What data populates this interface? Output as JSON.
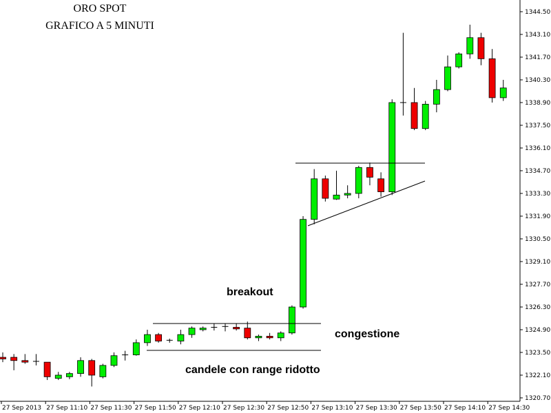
{
  "chart_data": {
    "type": "candlestick",
    "title": "ORO SPOT",
    "subtitle": "GRAFICO A 5 MINUTI",
    "y_ticks": [
      "1344.50",
      "1343.10",
      "1341.70",
      "1340.30",
      "1338.90",
      "1337.50",
      "1336.10",
      "1334.70",
      "1333.30",
      "1331.90",
      "1330.50",
      "1329.10",
      "1327.70",
      "1326.30",
      "1324.90",
      "1323.50",
      "1322.10",
      "1320.70"
    ],
    "ylim": [
      1320.7,
      1344.5
    ],
    "x_ticks": [
      "27 Sep 2013",
      "27 Sep 11:10",
      "27 Sep 11:30",
      "27 Sep 11:50",
      "27 Sep 12:10",
      "27 Sep 12:30",
      "27 Sep 12:50",
      "27 Sep 13:10",
      "27 Sep 13:30",
      "27 Sep 13:50",
      "27 Sep 14:10",
      "27 Sep 14:30"
    ],
    "candles": [
      {
        "open": 1323.2,
        "high": 1323.5,
        "low": 1322.9,
        "close": 1323.1
      },
      {
        "open": 1323.2,
        "high": 1323.4,
        "low": 1322.4,
        "close": 1323.0
      },
      {
        "open": 1323.0,
        "high": 1323.4,
        "low": 1322.8,
        "close": 1322.9
      },
      {
        "open": 1322.9,
        "high": 1323.4,
        "low": 1322.7,
        "close": 1322.95
      },
      {
        "open": 1322.9,
        "high": 1322.9,
        "low": 1321.8,
        "close": 1322.0
      },
      {
        "open": 1321.9,
        "high": 1322.3,
        "low": 1321.8,
        "close": 1322.1
      },
      {
        "open": 1322.0,
        "high": 1322.3,
        "low": 1321.85,
        "close": 1322.2
      },
      {
        "open": 1322.2,
        "high": 1323.2,
        "low": 1322.0,
        "close": 1323.0
      },
      {
        "open": 1323.0,
        "high": 1323.1,
        "low": 1321.4,
        "close": 1322.1
      },
      {
        "open": 1322.0,
        "high": 1322.8,
        "low": 1321.9,
        "close": 1322.7
      },
      {
        "open": 1322.7,
        "high": 1323.5,
        "low": 1322.6,
        "close": 1323.3
      },
      {
        "open": 1323.3,
        "high": 1323.6,
        "low": 1323.0,
        "close": 1323.35
      },
      {
        "open": 1323.35,
        "high": 1324.3,
        "low": 1323.3,
        "close": 1324.1
      },
      {
        "open": 1324.1,
        "high": 1324.9,
        "low": 1323.9,
        "close": 1324.6
      },
      {
        "open": 1324.6,
        "high": 1324.7,
        "low": 1324.1,
        "close": 1324.2
      },
      {
        "open": 1324.2,
        "high": 1324.35,
        "low": 1324.1,
        "close": 1324.25
      },
      {
        "open": 1324.2,
        "high": 1324.9,
        "low": 1324.0,
        "close": 1324.6
      },
      {
        "open": 1324.6,
        "high": 1325.1,
        "low": 1324.4,
        "close": 1325.0
      },
      {
        "open": 1324.9,
        "high": 1325.1,
        "low": 1324.8,
        "close": 1325.0
      },
      {
        "open": 1325.0,
        "high": 1325.3,
        "low": 1324.85,
        "close": 1325.05
      },
      {
        "open": 1325.05,
        "high": 1325.3,
        "low": 1324.8,
        "close": 1325.1
      },
      {
        "open": 1325.05,
        "high": 1325.3,
        "low": 1324.85,
        "close": 1324.95
      },
      {
        "open": 1325.0,
        "high": 1325.4,
        "low": 1324.3,
        "close": 1324.4
      },
      {
        "open": 1324.4,
        "high": 1324.6,
        "low": 1324.2,
        "close": 1324.5
      },
      {
        "open": 1324.5,
        "high": 1324.7,
        "low": 1324.3,
        "close": 1324.4
      },
      {
        "open": 1324.4,
        "high": 1324.8,
        "low": 1324.2,
        "close": 1324.7
      },
      {
        "open": 1324.7,
        "high": 1326.4,
        "low": 1324.6,
        "close": 1326.3
      },
      {
        "open": 1326.3,
        "high": 1331.9,
        "low": 1326.2,
        "close": 1331.7
      },
      {
        "open": 1331.7,
        "high": 1334.8,
        "low": 1331.4,
        "close": 1334.2
      },
      {
        "open": 1334.2,
        "high": 1334.4,
        "low": 1332.8,
        "close": 1333.0
      },
      {
        "open": 1332.95,
        "high": 1334.7,
        "low": 1332.9,
        "close": 1333.2
      },
      {
        "open": 1333.2,
        "high": 1333.8,
        "low": 1333.0,
        "close": 1333.3
      },
      {
        "open": 1333.3,
        "high": 1335.0,
        "low": 1333.0,
        "close": 1334.9
      },
      {
        "open": 1334.9,
        "high": 1335.2,
        "low": 1333.8,
        "close": 1334.3
      },
      {
        "open": 1334.2,
        "high": 1334.6,
        "low": 1333.1,
        "close": 1333.4
      },
      {
        "open": 1333.4,
        "high": 1339.1,
        "low": 1333.2,
        "close": 1338.9
      },
      {
        "open": 1338.9,
        "high": 1343.2,
        "low": 1338.1,
        "close": 1338.9
      },
      {
        "open": 1338.9,
        "high": 1339.8,
        "low": 1337.2,
        "close": 1337.3
      },
      {
        "open": 1337.3,
        "high": 1339.0,
        "low": 1337.2,
        "close": 1338.8
      },
      {
        "open": 1338.8,
        "high": 1340.3,
        "low": 1338.3,
        "close": 1339.7
      },
      {
        "open": 1339.7,
        "high": 1341.8,
        "low": 1339.6,
        "close": 1341.1
      },
      {
        "open": 1341.1,
        "high": 1342.0,
        "low": 1341.0,
        "close": 1341.9
      },
      {
        "open": 1341.9,
        "high": 1343.7,
        "low": 1341.6,
        "close": 1342.9
      },
      {
        "open": 1342.9,
        "high": 1343.2,
        "low": 1341.2,
        "close": 1341.6
      },
      {
        "open": 1341.6,
        "high": 1342.2,
        "low": 1338.9,
        "close": 1339.2
      },
      {
        "open": 1339.2,
        "high": 1340.3,
        "low": 1339.0,
        "close": 1339.8
      }
    ],
    "annotations": {
      "breakout": "breakout",
      "congestione": "congestione",
      "candele": "candele con range ridotto"
    },
    "colors": {
      "bullish": "#00ee00",
      "bearish": "#ee0000",
      "wick": "#000000",
      "axis": "#000000"
    }
  }
}
